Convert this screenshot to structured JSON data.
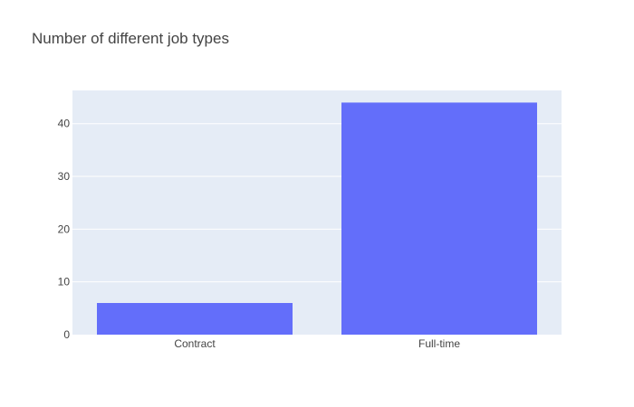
{
  "chart_data": {
    "type": "bar",
    "title": "Number of different job types",
    "xlabel": "",
    "ylabel": "",
    "categories": [
      "Contract",
      "Full-time"
    ],
    "values": [
      6,
      44
    ],
    "ylim": [
      0,
      46.3
    ],
    "yticks": [
      0,
      10,
      20,
      30,
      40
    ],
    "grid": true,
    "bar_color": "#636efa",
    "plot_background": "#e5ecf6",
    "grid_color": "#ffffff"
  }
}
